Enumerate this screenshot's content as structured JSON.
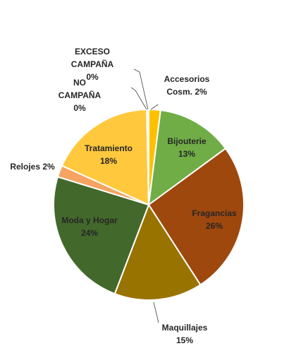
{
  "chart_data": {
    "type": "pie",
    "slices": [
      {
        "label": "Accesorios Cosm.",
        "value": 2,
        "percent_label": "2%",
        "color": "#FFC000"
      },
      {
        "label": "Bijouterie",
        "value": 13,
        "percent_label": "13%",
        "color": "#70AD47"
      },
      {
        "label": "Fragancias",
        "value": 26,
        "percent_label": "26%",
        "color": "#9E480E"
      },
      {
        "label": "Maquillajes",
        "value": 15,
        "percent_label": "15%",
        "color": "#997300"
      },
      {
        "label": "Moda y Hogar",
        "value": 24,
        "percent_label": "24%",
        "color": "#43682B"
      },
      {
        "label": "Relojes",
        "value": 2,
        "percent_label": "2%",
        "color": "#F4A460"
      },
      {
        "label": "Tratamiento",
        "value": 18,
        "percent_label": "18%",
        "color": "#FFC83D"
      },
      {
        "label": "NO CAMPAÑA",
        "value": 0,
        "percent_label": "0%",
        "color": "#7F7F7F"
      },
      {
        "label": "EXCESO CAMPAÑA",
        "value": 0,
        "percent_label": "0%",
        "color": "#A5A5A5"
      }
    ]
  }
}
